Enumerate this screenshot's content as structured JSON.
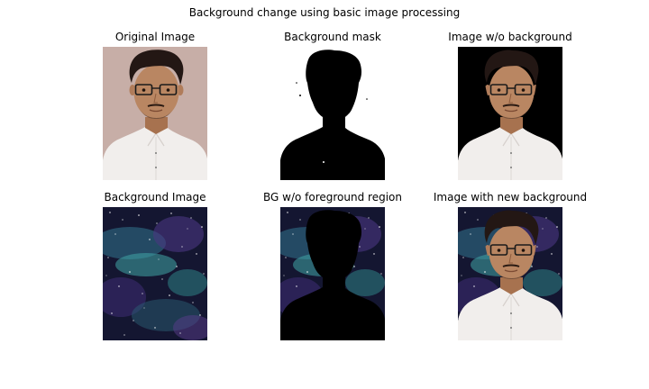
{
  "figure": {
    "title": "Background change using basic image processing"
  },
  "panels": [
    {
      "title": "Original Image"
    },
    {
      "title": "Background mask"
    },
    {
      "title": "Image w/o background"
    },
    {
      "title": "Background Image"
    },
    {
      "title": "BG w/o foreground region"
    },
    {
      "title": "Image with new background"
    }
  ],
  "colors": {
    "beige_background": "#c7aea7",
    "mask_white": "#ffffff",
    "mask_black": "#000000",
    "space_dark": "#161636",
    "space_teal": "#3fa5a5",
    "space_purple": "#5a3c8c",
    "shirt_white": "#f1eeec",
    "skin": "#b98662",
    "hair": "#231714"
  }
}
